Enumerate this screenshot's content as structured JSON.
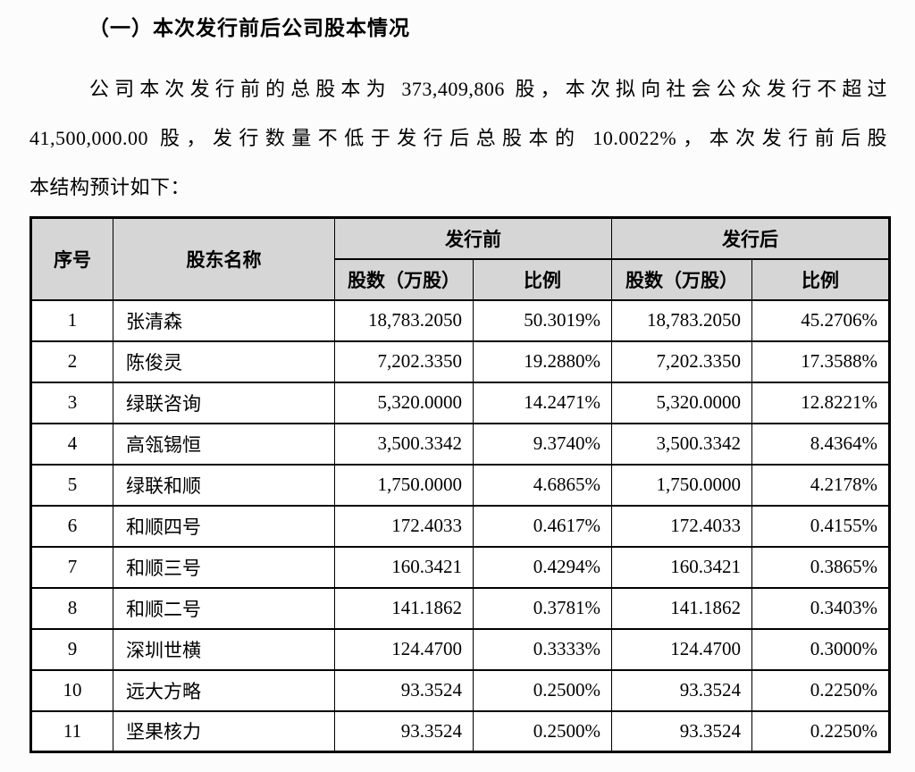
{
  "document": {
    "heading": "（一）本次发行前后公司股本情况",
    "paragraph_lines": [
      "公司本次发行前的总股本为 373,409,806 股，本次拟向社会公众发行不超过",
      "41,500,000.00 股，发行数量不低于发行后总股本的 10.0022%，本次发行前后股",
      "本结构预计如下："
    ]
  },
  "table": {
    "header": {
      "col_seq": "序号",
      "col_name": "股东名称",
      "group_before": "发行前",
      "group_after": "发行后",
      "col_shares": "股数（万股）",
      "col_ratio": "比例"
    },
    "rows": [
      {
        "seq": "1",
        "name": "张清森",
        "shares_before": "18,783.2050",
        "ratio_before": "50.3019%",
        "shares_after": "18,783.2050",
        "ratio_after": "45.2706%"
      },
      {
        "seq": "2",
        "name": "陈俊灵",
        "shares_before": "7,202.3350",
        "ratio_before": "19.2880%",
        "shares_after": "7,202.3350",
        "ratio_after": "17.3588%"
      },
      {
        "seq": "3",
        "name": "绿联咨询",
        "shares_before": "5,320.0000",
        "ratio_before": "14.2471%",
        "shares_after": "5,320.0000",
        "ratio_after": "12.8221%"
      },
      {
        "seq": "4",
        "name": "高瓴锡恒",
        "shares_before": "3,500.3342",
        "ratio_before": "9.3740%",
        "shares_after": "3,500.3342",
        "ratio_after": "8.4364%"
      },
      {
        "seq": "5",
        "name": "绿联和顺",
        "shares_before": "1,750.0000",
        "ratio_before": "4.6865%",
        "shares_after": "1,750.0000",
        "ratio_after": "4.2178%"
      },
      {
        "seq": "6",
        "name": "和顺四号",
        "shares_before": "172.4033",
        "ratio_before": "0.4617%",
        "shares_after": "172.4033",
        "ratio_after": "0.4155%"
      },
      {
        "seq": "7",
        "name": "和顺三号",
        "shares_before": "160.3421",
        "ratio_before": "0.4294%",
        "shares_after": "160.3421",
        "ratio_after": "0.3865%"
      },
      {
        "seq": "8",
        "name": "和顺二号",
        "shares_before": "141.1862",
        "ratio_before": "0.3781%",
        "shares_after": "141.1862",
        "ratio_after": "0.3403%"
      },
      {
        "seq": "9",
        "name": "深圳世横",
        "shares_before": "124.4700",
        "ratio_before": "0.3333%",
        "shares_after": "124.4700",
        "ratio_after": "0.3000%"
      },
      {
        "seq": "10",
        "name": "远大方略",
        "shares_before": "93.3524",
        "ratio_before": "0.2500%",
        "shares_after": "93.3524",
        "ratio_after": "0.2250%"
      },
      {
        "seq": "11",
        "name": "坚果核力",
        "shares_before": "93.3524",
        "ratio_before": "0.2500%",
        "shares_after": "93.3524",
        "ratio_after": "0.2250%"
      }
    ]
  },
  "colors": {
    "header_bg": "#d6d6d6",
    "border": "#000000",
    "text": "#000000",
    "page_bg": "#fcfcfc"
  }
}
